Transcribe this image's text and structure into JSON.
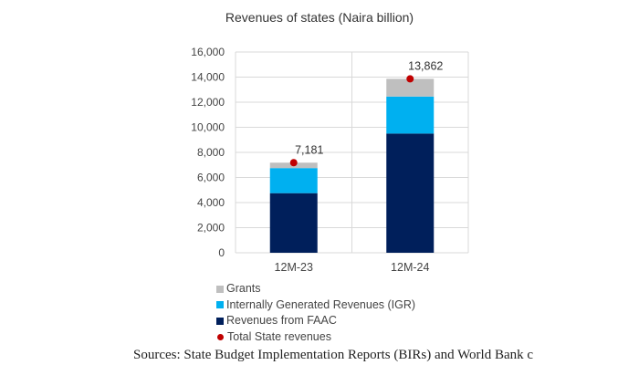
{
  "chart_data": {
    "type": "bar",
    "stacked": true,
    "title": "Revenues of states (Naira billion)",
    "categories": [
      "12M-23",
      "12M-24"
    ],
    "series": [
      {
        "name": "Revenues from FAAC",
        "values": [
          4750,
          9500
        ],
        "color": "#001F5B"
      },
      {
        "name": "Internally Generated Revenues (IGR)",
        "values": [
          2000,
          2950
        ],
        "color": "#00B0F0"
      },
      {
        "name": "Grants",
        "values": [
          431,
          1412
        ],
        "color": "#BFBFBF"
      }
    ],
    "total": {
      "name": "Total State revenues",
      "values": [
        7181,
        13862
      ],
      "labels": [
        "7,181",
        "13,862"
      ],
      "color": "#C00000"
    },
    "ylim": [
      0,
      16000
    ],
    "yticks": [
      "0",
      "2,000",
      "4,000",
      "6,000",
      "8,000",
      "10,000",
      "12,000",
      "14,000",
      "16,000"
    ],
    "grid": true,
    "legend_placement": "bottom",
    "legend_order": [
      "Grants",
      "Internally Generated Revenues (IGR)",
      "Revenues from FAAC",
      "Total State revenues"
    ]
  },
  "source": "Sources: State Budget Implementation Reports (BIRs) and World Bank c"
}
